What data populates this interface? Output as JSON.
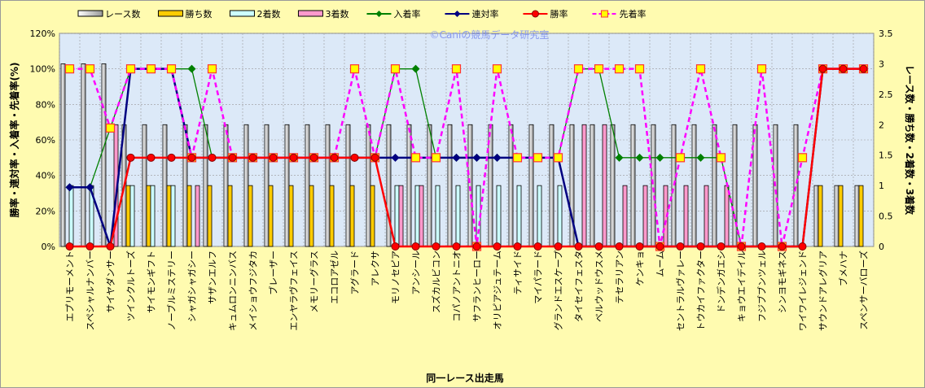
{
  "chart_data": {
    "type": "bar+line",
    "title": "",
    "watermark": "©Caniの競馬データ研究室",
    "xlabel": "同一レース出走馬",
    "ylabel_left": "勝率・連対率・入着率・先着率(%)",
    "ylabel_right": "レース数・勝ち数・2着数・3着数",
    "ylim_left": [
      0,
      120
    ],
    "yticks_left": [
      "0%",
      "20%",
      "40%",
      "60%",
      "80%",
      "100%",
      "120%"
    ],
    "ylim_right": [
      0,
      3.5
    ],
    "yticks_right": [
      "0",
      "0.5",
      "1",
      "1.5",
      "2",
      "2.5",
      "3",
      "3.5"
    ],
    "legend_position": "top",
    "categories": [
      "エプリモーメント",
      "スペシャルナンバー",
      "サイヤダンサー",
      "ツインクルトーズ",
      "サイモンギフト",
      "ノーブルミステリー",
      "シャガシャガシー",
      "サザンエルフ",
      "キュムロンニンバス",
      "メイショウフジタカ",
      "ブレーザー",
      "エンヤラヴフェイス",
      "メモリーグラス",
      "エコロアゼル",
      "アグラード",
      "アレクサ",
      "モリノセピア",
      "アンシール",
      "スズカルビコン",
      "コパノアントニオ",
      "サフランヒーロー",
      "オリピアジュテーム",
      "ティサイド",
      "マイパラード",
      "グランドエスケープ",
      "タイセイフェスタ",
      "ベルウッドウスメ",
      "テセラリアン",
      "ケンキョ",
      "ムーム",
      "セントラルヴァレー",
      "トウカイファクター",
      "ドンデンガエシ",
      "キョウエイデイル",
      "フジブブンツェル",
      "シンヨモギネス",
      "ワイワイレジェンド",
      "サウンドアレグリア",
      "ブメハナ",
      "スペンサーバローズ"
    ],
    "bar_series": [
      {
        "name": "レース数",
        "color": "#e8e8e8",
        "values": [
          3,
          3,
          3,
          2,
          2,
          2,
          2,
          2,
          2,
          2,
          2,
          2,
          2,
          2,
          2,
          2,
          2,
          2,
          2,
          2,
          2,
          2,
          2,
          2,
          2,
          2,
          2,
          2,
          2,
          2,
          2,
          2,
          2,
          2,
          2,
          2,
          2,
          1,
          1,
          1
        ]
      },
      {
        "name": "勝ち数",
        "color": "#ffcc00",
        "values": [
          0,
          0,
          0,
          1,
          1,
          1,
          1,
          1,
          1,
          1,
          1,
          1,
          1,
          1,
          1,
          1,
          0,
          0,
          0,
          0,
          0,
          0,
          0,
          0,
          0,
          0,
          0,
          0,
          0,
          0,
          0,
          0,
          0,
          0,
          0,
          0,
          0,
          1,
          1,
          1
        ]
      },
      {
        "name": "2着数",
        "color": "#ccffff",
        "values": [
          1,
          1,
          0,
          1,
          1,
          1,
          0,
          0,
          0,
          0,
          0,
          0,
          0,
          0,
          0,
          0,
          1,
          1,
          1,
          1,
          1,
          1,
          1,
          1,
          1,
          0,
          0,
          0,
          0,
          0,
          0,
          0,
          0,
          0,
          0,
          0,
          0,
          0,
          0,
          0
        ]
      },
      {
        "name": "3着数",
        "color": "#ff99cc",
        "values": [
          0,
          0,
          2,
          0,
          0,
          0,
          1,
          0,
          0,
          0,
          0,
          0,
          0,
          0,
          0,
          0,
          1,
          1,
          0,
          0,
          0,
          0,
          0,
          0,
          0,
          2,
          2,
          1,
          1,
          1,
          1,
          1,
          1,
          0,
          0,
          0,
          0,
          0,
          0,
          0
        ]
      }
    ],
    "line_series": [
      {
        "name": "入着率",
        "color": "#008000",
        "marker": "diamond",
        "values": [
          33.3,
          33.3,
          66.7,
          100,
          100,
          100,
          100,
          50,
          50,
          50,
          50,
          50,
          50,
          50,
          50,
          50,
          100,
          100,
          50,
          50,
          50,
          50,
          50,
          50,
          50,
          100,
          100,
          50,
          50,
          50,
          50,
          50,
          50,
          0,
          0,
          0,
          0,
          100,
          100,
          100
        ]
      },
      {
        "name": "連対率",
        "color": "#000080",
        "marker": "diamond",
        "values": [
          33.3,
          33.3,
          0,
          100,
          100,
          100,
          50,
          50,
          50,
          50,
          50,
          50,
          50,
          50,
          50,
          50,
          50,
          50,
          50,
          50,
          50,
          50,
          50,
          50,
          50,
          0,
          0,
          0,
          0,
          0,
          0,
          0,
          0,
          0,
          0,
          0,
          0,
          100,
          100,
          100
        ]
      },
      {
        "name": "勝率",
        "color": "#ff0000",
        "marker": "circle",
        "values": [
          0,
          0,
          0,
          50,
          50,
          50,
          50,
          50,
          50,
          50,
          50,
          50,
          50,
          50,
          50,
          50,
          0,
          0,
          0,
          0,
          0,
          0,
          0,
          0,
          0,
          0,
          0,
          0,
          0,
          0,
          0,
          0,
          0,
          0,
          0,
          0,
          0,
          100,
          100,
          100
        ]
      },
      {
        "name": "先着率",
        "color": "#ff00ff",
        "marker": "square",
        "dashed": true,
        "values": [
          100,
          100,
          66.7,
          100,
          100,
          100,
          50,
          100,
          50,
          50,
          50,
          50,
          50,
          50,
          100,
          50,
          100,
          50,
          50,
          100,
          0,
          100,
          50,
          50,
          50,
          100,
          100,
          100,
          100,
          0,
          50,
          100,
          50,
          0,
          100,
          0,
          50,
          100,
          100,
          100
        ]
      }
    ]
  }
}
